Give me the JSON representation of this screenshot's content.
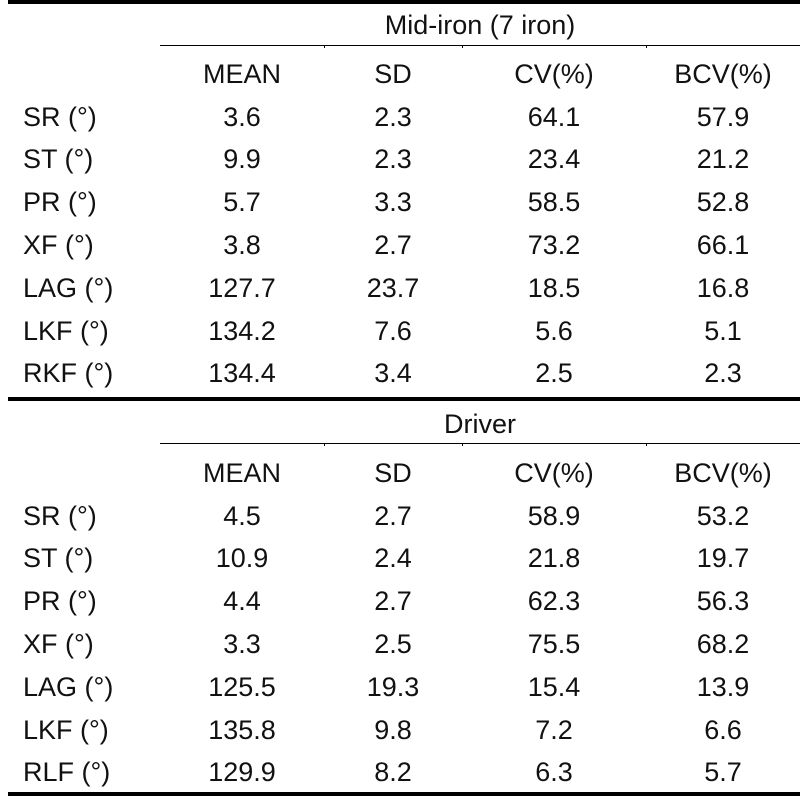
{
  "tables": [
    {
      "title": "Mid-iron (7 iron)",
      "headers": [
        "MEAN",
        "SD",
        "CV(%)",
        "BCV(%)"
      ],
      "rows": [
        {
          "label": "SR (°)",
          "values": [
            "3.6",
            "2.3",
            "64.1",
            "57.9"
          ]
        },
        {
          "label": "ST (°)",
          "values": [
            "9.9",
            "2.3",
            "23.4",
            "21.2"
          ]
        },
        {
          "label": "PR (°)",
          "values": [
            "5.7",
            "3.3",
            "58.5",
            "52.8"
          ]
        },
        {
          "label": "XF (°)",
          "values": [
            "3.8",
            "2.7",
            "73.2",
            "66.1"
          ]
        },
        {
          "label": "LAG (°)",
          "values": [
            "127.7",
            "23.7",
            "18.5",
            "16.8"
          ]
        },
        {
          "label": "LKF (°)",
          "values": [
            "134.2",
            "7.6",
            "5.6",
            "5.1"
          ]
        },
        {
          "label": "RKF (°)",
          "values": [
            "134.4",
            "3.4",
            "2.5",
            "2.3"
          ]
        }
      ]
    },
    {
      "title": "Driver",
      "headers": [
        "MEAN",
        "SD",
        "CV(%)",
        "BCV(%)"
      ],
      "rows": [
        {
          "label": "SR (°)",
          "values": [
            "4.5",
            "2.7",
            "58.9",
            "53.2"
          ]
        },
        {
          "label": "ST (°)",
          "values": [
            "10.9",
            "2.4",
            "21.8",
            "19.7"
          ]
        },
        {
          "label": "PR (°)",
          "values": [
            "4.4",
            "2.7",
            "62.3",
            "56.3"
          ]
        },
        {
          "label": "XF (°)",
          "values": [
            "3.3",
            "2.5",
            "75.5",
            "68.2"
          ]
        },
        {
          "label": "LAG (°)",
          "values": [
            "125.5",
            "19.3",
            "15.4",
            "13.9"
          ]
        },
        {
          "label": "LKF (°)",
          "values": [
            "135.8",
            "9.8",
            "7.2",
            "6.6"
          ]
        },
        {
          "label": "RLF (°)",
          "values": [
            "129.9",
            "8.2",
            "6.3",
            "5.7"
          ]
        }
      ]
    }
  ]
}
